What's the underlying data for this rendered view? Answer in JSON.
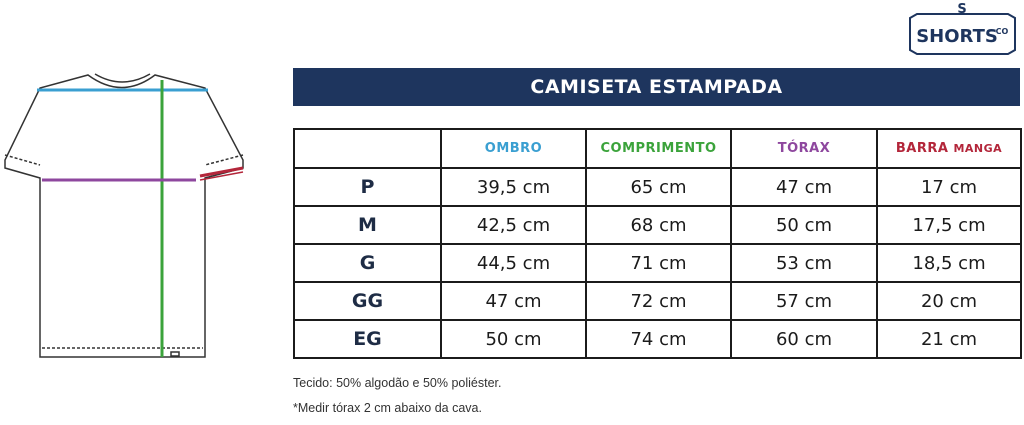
{
  "logo": {
    "mark": "S",
    "name": "SHORTS",
    "suffix": "CO"
  },
  "title": "CAMISETA ESTAMPADA",
  "table": {
    "columns": [
      {
        "label": "OMBRO",
        "color": "#3a9fd1"
      },
      {
        "label": "COMPRIMENTO",
        "color": "#3ba33b"
      },
      {
        "label": "TÓRAX",
        "color": "#8e479e"
      },
      {
        "label": "BARRA",
        "label_small": "MANGA",
        "color": "#b3263a"
      }
    ],
    "rows": [
      {
        "size": "P",
        "cells": [
          "39,5 cm",
          "65 cm",
          "47 cm",
          "17 cm"
        ]
      },
      {
        "size": "M",
        "cells": [
          "42,5 cm",
          "68 cm",
          "50 cm",
          "17,5 cm"
        ]
      },
      {
        "size": "G",
        "cells": [
          "44,5 cm",
          "71 cm",
          "53 cm",
          "18,5 cm"
        ]
      },
      {
        "size": "GG",
        "cells": [
          "47 cm",
          "72 cm",
          "57 cm",
          "20 cm"
        ]
      },
      {
        "size": "EG",
        "cells": [
          "50 cm",
          "74 cm",
          "60 cm",
          "21 cm"
        ]
      }
    ]
  },
  "notes": [
    "Tecido: 50% algodão e 50% poliéster.",
    "*Medir tórax 2 cm abaixo da cava."
  ]
}
